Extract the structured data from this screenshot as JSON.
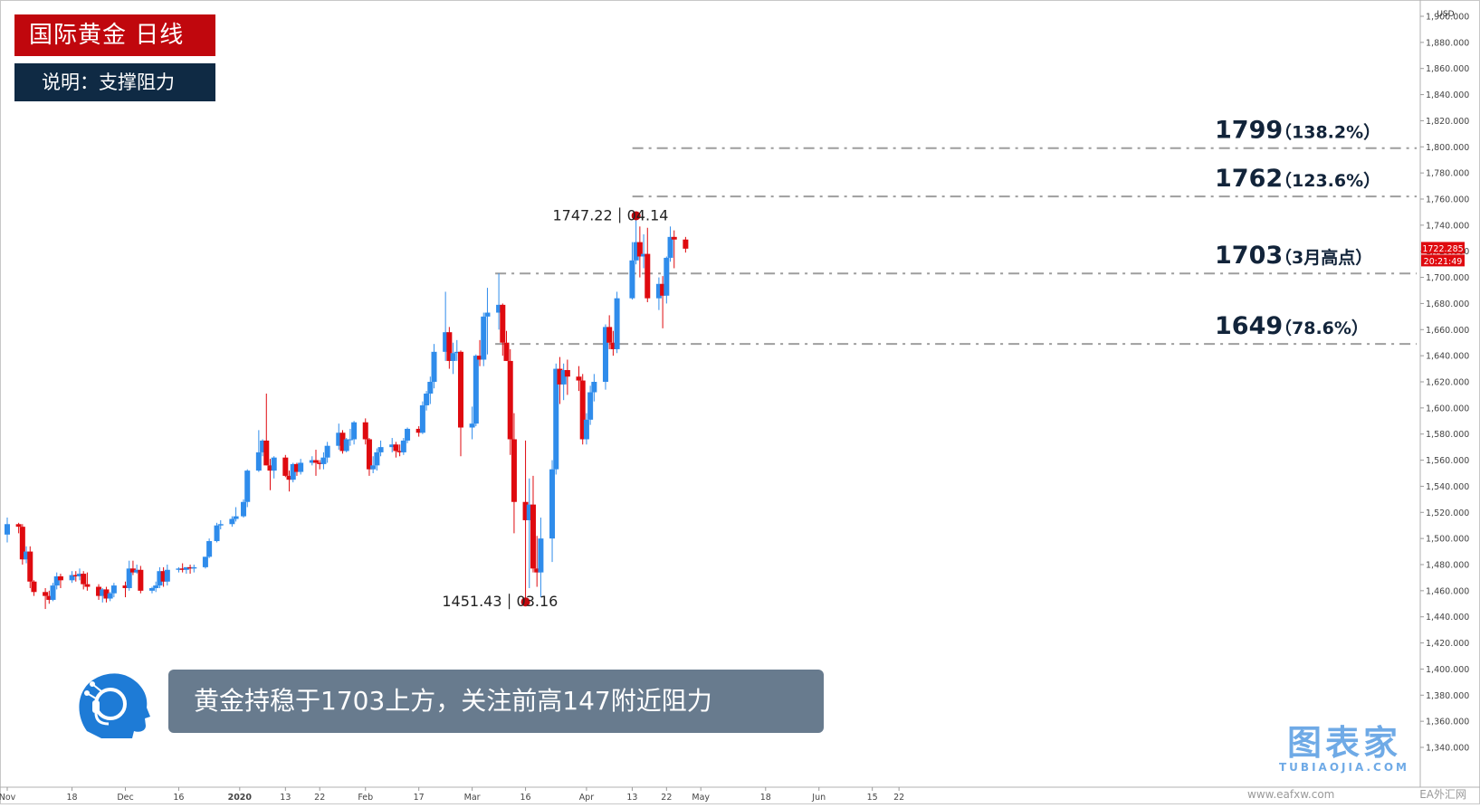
{
  "header": {
    "title": "国际黄金  日线",
    "subtitle": "说明：支撑阻力"
  },
  "callout": {
    "text": "黄金持稳于1703上方，关注前高147附近阻力"
  },
  "watermark": {
    "brand": "图表家",
    "domain": "TUBIAOJIA.COM",
    "site": "www.eafxw.com",
    "site2": "EA外汇网"
  },
  "colors": {
    "up": "#2f8ceb",
    "down": "#df0a0f",
    "title_bg": "#c0070d",
    "subtitle_bg": "#0f2a44",
    "callout_bg": "#687b8e",
    "level_line": "#9e9e9e",
    "marker": "#c0070d"
  },
  "chart_data": {
    "type": "candlestick",
    "currency": "USD",
    "ylim": [
      1340,
      1900
    ],
    "y_ticks": [
      1340,
      1360,
      1380,
      1400,
      1420,
      1440,
      1460,
      1480,
      1500,
      1520,
      1540,
      1560,
      1580,
      1600,
      1620,
      1640,
      1660,
      1680,
      1700,
      1720,
      1740,
      1760,
      1780,
      1800,
      1820,
      1840,
      1860,
      1880,
      1900
    ],
    "x_ticks": [
      {
        "label": "Nov",
        "date": "2019-11-01"
      },
      {
        "label": "18",
        "date": "2019-11-18"
      },
      {
        "label": "Dec",
        "date": "2019-12-02"
      },
      {
        "label": "16",
        "date": "2019-12-16"
      },
      {
        "label": "2020",
        "date": "2020-01-01"
      },
      {
        "label": "13",
        "date": "2020-01-13"
      },
      {
        "label": "22",
        "date": "2020-01-22"
      },
      {
        "label": "Feb",
        "date": "2020-02-03"
      },
      {
        "label": "17",
        "date": "2020-02-17"
      },
      {
        "label": "Mar",
        "date": "2020-03-02"
      },
      {
        "label": "16",
        "date": "2020-03-16"
      },
      {
        "label": "Apr",
        "date": "2020-04-01"
      },
      {
        "label": "13",
        "date": "2020-04-13"
      },
      {
        "label": "22",
        "date": "2020-04-22"
      },
      {
        "label": "May",
        "date": "2020-05-01"
      },
      {
        "label": "18",
        "date": "2020-05-18"
      },
      {
        "label": "Jun",
        "date": "2020-06-01"
      },
      {
        "label": "15",
        "date": "2020-06-15"
      },
      {
        "label": "22",
        "date": "2020-06-22"
      }
    ],
    "price_tag": {
      "value": "1722.285",
      "countdown": "20:21:49",
      "price": 1722.3
    },
    "levels": [
      {
        "value": 1799,
        "label": "1799",
        "note": "（138.2%）",
        "from_date": "2020-04-14"
      },
      {
        "value": 1762,
        "label": "1762",
        "note": "（123.6%）",
        "from_date": "2020-04-14"
      },
      {
        "value": 1703,
        "label": "1703",
        "note": "（3月高点）",
        "from_date": "2020-03-09"
      },
      {
        "value": 1649,
        "label": "1649",
        "note": "（78.6%）",
        "from_date": "2020-03-09"
      }
    ],
    "markers": [
      {
        "price": 1747.22,
        "date": "2020-04-14",
        "value_text": "1747.22",
        "date_text": "04.14",
        "position": "above"
      },
      {
        "price": 1451.43,
        "date": "2020-03-16",
        "value_text": "1451.43",
        "date_text": "03.16",
        "position": "below"
      }
    ],
    "candles": [
      {
        "t": "2019-11-01",
        "o": 1503,
        "h": 1516,
        "l": 1497,
        "c": 1511
      },
      {
        "t": "2019-11-04",
        "o": 1511,
        "h": 1512,
        "l": 1504,
        "c": 1509
      },
      {
        "t": "2019-11-05",
        "o": 1509,
        "h": 1511,
        "l": 1480,
        "c": 1484
      },
      {
        "t": "2019-11-06",
        "o": 1484,
        "h": 1494,
        "l": 1481,
        "c": 1490
      },
      {
        "t": "2019-11-07",
        "o": 1490,
        "h": 1494,
        "l": 1462,
        "c": 1467
      },
      {
        "t": "2019-11-08",
        "o": 1467,
        "h": 1468,
        "l": 1456,
        "c": 1459
      },
      {
        "t": "2019-11-11",
        "o": 1459,
        "h": 1462,
        "l": 1446,
        "c": 1456
      },
      {
        "t": "2019-11-12",
        "o": 1456,
        "h": 1460,
        "l": 1450,
        "c": 1453
      },
      {
        "t": "2019-11-13",
        "o": 1453,
        "h": 1466,
        "l": 1452,
        "c": 1464
      },
      {
        "t": "2019-11-14",
        "o": 1464,
        "h": 1474,
        "l": 1461,
        "c": 1471
      },
      {
        "t": "2019-11-15",
        "o": 1471,
        "h": 1473,
        "l": 1462,
        "c": 1468
      },
      {
        "t": "2019-11-18",
        "o": 1468,
        "h": 1475,
        "l": 1466,
        "c": 1472
      },
      {
        "t": "2019-11-19",
        "o": 1472,
        "h": 1475,
        "l": 1467,
        "c": 1471
      },
      {
        "t": "2019-11-20",
        "o": 1471,
        "h": 1477,
        "l": 1468,
        "c": 1473
      },
      {
        "t": "2019-11-21",
        "o": 1473,
        "h": 1475,
        "l": 1461,
        "c": 1465
      },
      {
        "t": "2019-11-22",
        "o": 1465,
        "h": 1474,
        "l": 1460,
        "c": 1463
      },
      {
        "t": "2019-11-25",
        "o": 1463,
        "h": 1465,
        "l": 1453,
        "c": 1456
      },
      {
        "t": "2019-11-26",
        "o": 1456,
        "h": 1462,
        "l": 1451,
        "c": 1461
      },
      {
        "t": "2019-11-27",
        "o": 1461,
        "h": 1463,
        "l": 1451,
        "c": 1454
      },
      {
        "t": "2019-11-28",
        "o": 1454,
        "h": 1459,
        "l": 1452,
        "c": 1458
      },
      {
        "t": "2019-11-29",
        "o": 1458,
        "h": 1466,
        "l": 1455,
        "c": 1464
      },
      {
        "t": "2019-12-02",
        "o": 1464,
        "h": 1467,
        "l": 1455,
        "c": 1462
      },
      {
        "t": "2019-12-03",
        "o": 1462,
        "h": 1483,
        "l": 1460,
        "c": 1477
      },
      {
        "t": "2019-12-04",
        "o": 1477,
        "h": 1483,
        "l": 1472,
        "c": 1474
      },
      {
        "t": "2019-12-05",
        "o": 1474,
        "h": 1480,
        "l": 1473,
        "c": 1476
      },
      {
        "t": "2019-12-06",
        "o": 1476,
        "h": 1479,
        "l": 1458,
        "c": 1460
      },
      {
        "t": "2019-12-09",
        "o": 1460,
        "h": 1463,
        "l": 1458,
        "c": 1462
      },
      {
        "t": "2019-12-10",
        "o": 1462,
        "h": 1467,
        "l": 1459,
        "c": 1464
      },
      {
        "t": "2019-12-11",
        "o": 1464,
        "h": 1478,
        "l": 1462,
        "c": 1475
      },
      {
        "t": "2019-12-12",
        "o": 1475,
        "h": 1478,
        "l": 1463,
        "c": 1467
      },
      {
        "t": "2019-12-13",
        "o": 1467,
        "h": 1480,
        "l": 1464,
        "c": 1476
      },
      {
        "t": "2019-12-16",
        "o": 1476,
        "h": 1478,
        "l": 1474,
        "c": 1477
      },
      {
        "t": "2019-12-17",
        "o": 1477,
        "h": 1481,
        "l": 1474,
        "c": 1476
      },
      {
        "t": "2019-12-18",
        "o": 1476,
        "h": 1478,
        "l": 1473,
        "c": 1478
      },
      {
        "t": "2019-12-19",
        "o": 1478,
        "h": 1480,
        "l": 1473,
        "c": 1477
      },
      {
        "t": "2019-12-20",
        "o": 1477,
        "h": 1480,
        "l": 1474,
        "c": 1478
      },
      {
        "t": "2019-12-23",
        "o": 1478,
        "h": 1486,
        "l": 1477,
        "c": 1486
      },
      {
        "t": "2019-12-24",
        "o": 1486,
        "h": 1500,
        "l": 1485,
        "c": 1498
      },
      {
        "t": "2019-12-26",
        "o": 1498,
        "h": 1512,
        "l": 1497,
        "c": 1510
      },
      {
        "t": "2019-12-27",
        "o": 1510,
        "h": 1514,
        "l": 1507,
        "c": 1511
      },
      {
        "t": "2019-12-30",
        "o": 1511,
        "h": 1517,
        "l": 1509,
        "c": 1515
      },
      {
        "t": "2019-12-31",
        "o": 1515,
        "h": 1524,
        "l": 1513,
        "c": 1517
      },
      {
        "t": "2020-01-02",
        "o": 1517,
        "h": 1530,
        "l": 1516,
        "c": 1528
      },
      {
        "t": "2020-01-03",
        "o": 1528,
        "h": 1553,
        "l": 1524,
        "c": 1552
      },
      {
        "t": "2020-01-06",
        "o": 1552,
        "h": 1583,
        "l": 1551,
        "c": 1566
      },
      {
        "t": "2020-01-07",
        "o": 1566,
        "h": 1576,
        "l": 1563,
        "c": 1575
      },
      {
        "t": "2020-01-08",
        "o": 1575,
        "h": 1611,
        "l": 1556,
        "c": 1556
      },
      {
        "t": "2020-01-09",
        "o": 1556,
        "h": 1561,
        "l": 1537,
        "c": 1552
      },
      {
        "t": "2020-01-10",
        "o": 1552,
        "h": 1563,
        "l": 1546,
        "c": 1562
      },
      {
        "t": "2020-01-13",
        "o": 1562,
        "h": 1564,
        "l": 1547,
        "c": 1548
      },
      {
        "t": "2020-01-14",
        "o": 1548,
        "h": 1552,
        "l": 1536,
        "c": 1545
      },
      {
        "t": "2020-01-15",
        "o": 1545,
        "h": 1558,
        "l": 1543,
        "c": 1557
      },
      {
        "t": "2020-01-16",
        "o": 1557,
        "h": 1558,
        "l": 1548,
        "c": 1551
      },
      {
        "t": "2020-01-17",
        "o": 1551,
        "h": 1561,
        "l": 1549,
        "c": 1558
      },
      {
        "t": "2020-01-20",
        "o": 1558,
        "h": 1563,
        "l": 1556,
        "c": 1560
      },
      {
        "t": "2020-01-21",
        "o": 1560,
        "h": 1568,
        "l": 1548,
        "c": 1558
      },
      {
        "t": "2020-01-22",
        "o": 1558,
        "h": 1560,
        "l": 1553,
        "c": 1557
      },
      {
        "t": "2020-01-23",
        "o": 1557,
        "h": 1566,
        "l": 1553,
        "c": 1562
      },
      {
        "t": "2020-01-24",
        "o": 1562,
        "h": 1574,
        "l": 1558,
        "c": 1571
      },
      {
        "t": "2020-01-27",
        "o": 1571,
        "h": 1588,
        "l": 1568,
        "c": 1581
      },
      {
        "t": "2020-01-28",
        "o": 1581,
        "h": 1583,
        "l": 1565,
        "c": 1567
      },
      {
        "t": "2020-01-29",
        "o": 1567,
        "h": 1577,
        "l": 1566,
        "c": 1576
      },
      {
        "t": "2020-01-30",
        "o": 1576,
        "h": 1584,
        "l": 1571,
        "c": 1576
      },
      {
        "t": "2020-01-31",
        "o": 1576,
        "h": 1590,
        "l": 1572,
        "c": 1589
      },
      {
        "t": "2020-02-03",
        "o": 1589,
        "h": 1592,
        "l": 1572,
        "c": 1576
      },
      {
        "t": "2020-02-04",
        "o": 1576,
        "h": 1577,
        "l": 1548,
        "c": 1553
      },
      {
        "t": "2020-02-05",
        "o": 1553,
        "h": 1563,
        "l": 1550,
        "c": 1556
      },
      {
        "t": "2020-02-06",
        "o": 1556,
        "h": 1569,
        "l": 1552,
        "c": 1566
      },
      {
        "t": "2020-02-07",
        "o": 1566,
        "h": 1575,
        "l": 1563,
        "c": 1570
      },
      {
        "t": "2020-02-10",
        "o": 1570,
        "h": 1577,
        "l": 1566,
        "c": 1572
      },
      {
        "t": "2020-02-11",
        "o": 1572,
        "h": 1574,
        "l": 1562,
        "c": 1567
      },
      {
        "t": "2020-02-12",
        "o": 1567,
        "h": 1572,
        "l": 1563,
        "c": 1566
      },
      {
        "t": "2020-02-13",
        "o": 1566,
        "h": 1577,
        "l": 1564,
        "c": 1575
      },
      {
        "t": "2020-02-14",
        "o": 1575,
        "h": 1585,
        "l": 1573,
        "c": 1584
      },
      {
        "t": "2020-02-17",
        "o": 1584,
        "h": 1586,
        "l": 1578,
        "c": 1581
      },
      {
        "t": "2020-02-18",
        "o": 1581,
        "h": 1605,
        "l": 1580,
        "c": 1602
      },
      {
        "t": "2020-02-19",
        "o": 1602,
        "h": 1613,
        "l": 1598,
        "c": 1611
      },
      {
        "t": "2020-02-20",
        "o": 1611,
        "h": 1624,
        "l": 1603,
        "c": 1620
      },
      {
        "t": "2020-02-21",
        "o": 1620,
        "h": 1649,
        "l": 1615,
        "c": 1643
      },
      {
        "t": "2020-02-24",
        "o": 1643,
        "h": 1689,
        "l": 1636,
        "c": 1658
      },
      {
        "t": "2020-02-25",
        "o": 1658,
        "h": 1662,
        "l": 1630,
        "c": 1636
      },
      {
        "t": "2020-02-26",
        "o": 1636,
        "h": 1650,
        "l": 1626,
        "c": 1642
      },
      {
        "t": "2020-02-27",
        "o": 1642,
        "h": 1652,
        "l": 1636,
        "c": 1643
      },
      {
        "t": "2020-02-28",
        "o": 1643,
        "h": 1644,
        "l": 1563,
        "c": 1585
      },
      {
        "t": "2020-03-02",
        "o": 1585,
        "h": 1601,
        "l": 1576,
        "c": 1588
      },
      {
        "t": "2020-03-03",
        "o": 1588,
        "h": 1641,
        "l": 1586,
        "c": 1640
      },
      {
        "t": "2020-03-04",
        "o": 1640,
        "h": 1652,
        "l": 1632,
        "c": 1637
      },
      {
        "t": "2020-03-05",
        "o": 1637,
        "h": 1673,
        "l": 1632,
        "c": 1670
      },
      {
        "t": "2020-03-06",
        "o": 1670,
        "h": 1692,
        "l": 1641,
        "c": 1673
      },
      {
        "t": "2020-03-09",
        "o": 1673,
        "h": 1703,
        "l": 1660,
        "c": 1679
      },
      {
        "t": "2020-03-10",
        "o": 1679,
        "h": 1680,
        "l": 1640,
        "c": 1650
      },
      {
        "t": "2020-03-11",
        "o": 1650,
        "h": 1659,
        "l": 1636,
        "c": 1636
      },
      {
        "t": "2020-03-12",
        "o": 1636,
        "h": 1645,
        "l": 1564,
        "c": 1576
      },
      {
        "t": "2020-03-13",
        "o": 1576,
        "h": 1596,
        "l": 1504,
        "c": 1528
      },
      {
        "t": "2020-03-16",
        "o": 1528,
        "h": 1575,
        "l": 1451,
        "c": 1514
      },
      {
        "t": "2020-03-17",
        "o": 1514,
        "h": 1546,
        "l": 1462,
        "c": 1526
      },
      {
        "t": "2020-03-18",
        "o": 1526,
        "h": 1548,
        "l": 1474,
        "c": 1477
      },
      {
        "t": "2020-03-19",
        "o": 1477,
        "h": 1502,
        "l": 1463,
        "c": 1474
      },
      {
        "t": "2020-03-20",
        "o": 1474,
        "h": 1516,
        "l": 1455,
        "c": 1500
      },
      {
        "t": "2020-03-23",
        "o": 1500,
        "h": 1560,
        "l": 1482,
        "c": 1553
      },
      {
        "t": "2020-03-24",
        "o": 1553,
        "h": 1634,
        "l": 1549,
        "c": 1630
      },
      {
        "t": "2020-03-25",
        "o": 1630,
        "h": 1639,
        "l": 1603,
        "c": 1618
      },
      {
        "t": "2020-03-26",
        "o": 1618,
        "h": 1634,
        "l": 1606,
        "c": 1629
      },
      {
        "t": "2020-03-27",
        "o": 1629,
        "h": 1637,
        "l": 1610,
        "c": 1624
      },
      {
        "t": "2020-03-30",
        "o": 1624,
        "h": 1632,
        "l": 1613,
        "c": 1621
      },
      {
        "t": "2020-03-31",
        "o": 1621,
        "h": 1626,
        "l": 1572,
        "c": 1576
      },
      {
        "t": "2020-04-01",
        "o": 1576,
        "h": 1596,
        "l": 1572,
        "c": 1591
      },
      {
        "t": "2020-04-02",
        "o": 1591,
        "h": 1617,
        "l": 1587,
        "c": 1612
      },
      {
        "t": "2020-04-03",
        "o": 1612,
        "h": 1626,
        "l": 1605,
        "c": 1620
      },
      {
        "t": "2020-04-06",
        "o": 1620,
        "h": 1664,
        "l": 1614,
        "c": 1662
      },
      {
        "t": "2020-04-07",
        "o": 1662,
        "h": 1671,
        "l": 1645,
        "c": 1650
      },
      {
        "t": "2020-04-08",
        "o": 1650,
        "h": 1659,
        "l": 1640,
        "c": 1645
      },
      {
        "t": "2020-04-09",
        "o": 1645,
        "h": 1689,
        "l": 1642,
        "c": 1684
      },
      {
        "t": "2020-04-13",
        "o": 1684,
        "h": 1727,
        "l": 1683,
        "c": 1713
      },
      {
        "t": "2020-04-14",
        "o": 1713,
        "h": 1747,
        "l": 1710,
        "c": 1727
      },
      {
        "t": "2020-04-15",
        "o": 1727,
        "h": 1739,
        "l": 1700,
        "c": 1716
      },
      {
        "t": "2020-04-16",
        "o": 1716,
        "h": 1733,
        "l": 1707,
        "c": 1718
      },
      {
        "t": "2020-04-17",
        "o": 1718,
        "h": 1738,
        "l": 1681,
        "c": 1684
      },
      {
        "t": "2020-04-20",
        "o": 1684,
        "h": 1700,
        "l": 1675,
        "c": 1695
      },
      {
        "t": "2020-04-21",
        "o": 1695,
        "h": 1701,
        "l": 1661,
        "c": 1686
      },
      {
        "t": "2020-04-22",
        "o": 1686,
        "h": 1716,
        "l": 1680,
        "c": 1715
      },
      {
        "t": "2020-04-23",
        "o": 1715,
        "h": 1739,
        "l": 1712,
        "c": 1731
      },
      {
        "t": "2020-04-24",
        "o": 1731,
        "h": 1736,
        "l": 1707,
        "c": 1729
      },
      {
        "t": "2020-04-27",
        "o": 1729,
        "h": 1731,
        "l": 1719,
        "c": 1722
      }
    ]
  }
}
